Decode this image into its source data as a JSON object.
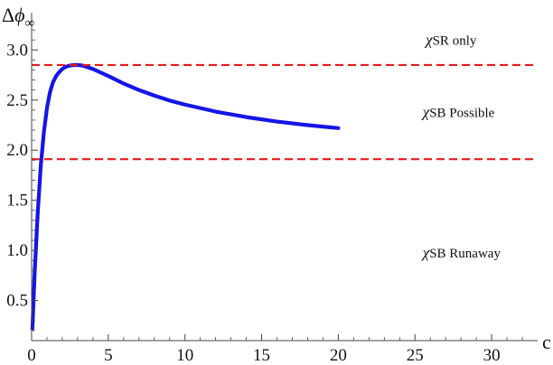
{
  "chart_data": {
    "type": "line",
    "xlabel": "c",
    "ylabel": {
      "delta": "Δ",
      "symbol": "ϕ",
      "subscript": "∞"
    },
    "xlim": [
      0,
      33
    ],
    "ylim": [
      0.1,
      3.3
    ],
    "x_ticks": [
      0,
      5,
      10,
      15,
      20,
      25,
      30
    ],
    "x_tick_labels": [
      "0",
      "5",
      "10",
      "15",
      "20",
      "25",
      "30"
    ],
    "y_ticks": [
      0.5,
      1.0,
      1.5,
      2.0,
      2.5,
      3.0
    ],
    "y_tick_labels": [
      "0.5",
      "1.0",
      "1.5",
      "2.0",
      "2.5",
      "3.0"
    ],
    "grid": false,
    "series": [
      {
        "color": "#1515e6",
        "style": "solid",
        "x": [
          0.05,
          0.2,
          0.4,
          0.6,
          0.8,
          1.0,
          1.2,
          1.4,
          1.6,
          1.8,
          2.0,
          2.2,
          2.5,
          2.8,
          3.0,
          3.3,
          3.6,
          4.0,
          4.5,
          5.0,
          6.0,
          7.0,
          8.0,
          9.0,
          10.0,
          12.0,
          14.0,
          16.0,
          18.0,
          20.0
        ],
        "y": [
          0.22,
          0.78,
          1.38,
          1.85,
          2.18,
          2.42,
          2.58,
          2.68,
          2.74,
          2.78,
          2.81,
          2.83,
          2.845,
          2.85,
          2.85,
          2.845,
          2.83,
          2.81,
          2.775,
          2.74,
          2.665,
          2.6,
          2.545,
          2.495,
          2.455,
          2.385,
          2.33,
          2.285,
          2.25,
          2.22
        ]
      },
      {
        "color": "#e81a1a",
        "style": "dashed",
        "x": [
          0,
          33
        ],
        "y": [
          2.85,
          2.85
        ]
      },
      {
        "color": "#e81a1a",
        "style": "dashed",
        "x": [
          0,
          33
        ],
        "y": [
          1.91,
          1.91
        ]
      }
    ],
    "annotations": [
      {
        "chi": "χ",
        "text": "SR only",
        "x": 25.7,
        "y": 3.05
      },
      {
        "chi": "χ",
        "text": "SB Possible",
        "x": 25.5,
        "y": 2.33
      },
      {
        "chi": "χ",
        "text": "SB Runaway",
        "x": 25.5,
        "y": 0.93
      }
    ]
  }
}
